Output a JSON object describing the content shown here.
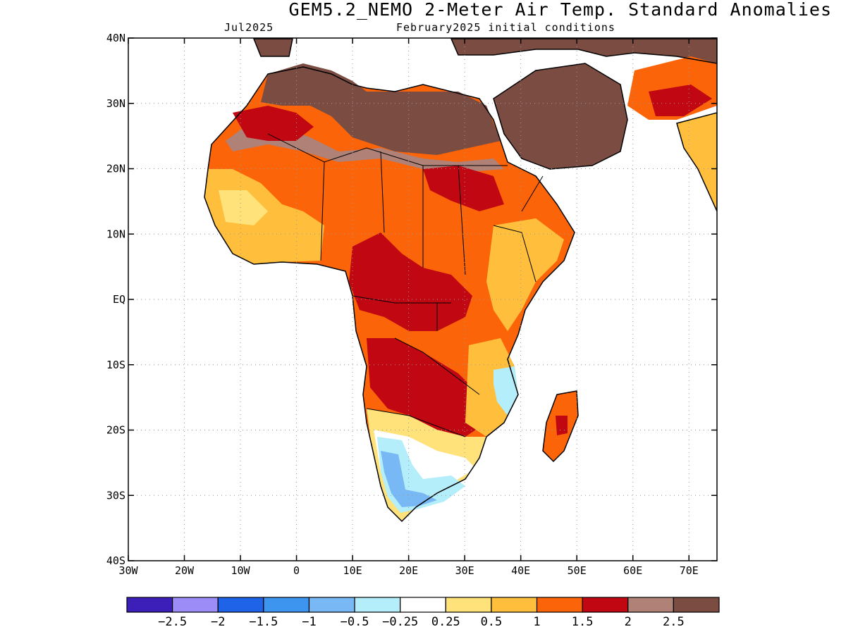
{
  "title": "GEM5.2_NEMO 2-Meter Air Temp. Standard Anomalies",
  "subtitle_left": "Jul2025",
  "subtitle_right": "February2025 initial conditions",
  "map": {
    "lon_range": [
      -30,
      75
    ],
    "lat_range": [
      -40,
      40
    ],
    "grid": true,
    "lon_ticks": [
      "30W",
      "20W",
      "10W",
      "0",
      "10E",
      "20E",
      "30E",
      "40E",
      "50E",
      "60E",
      "70E"
    ],
    "lat_ticks": [
      "40N",
      "30N",
      "20N",
      "10N",
      "EQ",
      "10S",
      "20S",
      "30S",
      "40S"
    ],
    "land_outline_color": "#000000"
  },
  "colorbar": {
    "colors": [
      "#3b1fb8",
      "#9b8cf7",
      "#1f64e8",
      "#3d95f0",
      "#78b8f5",
      "#b4eefa",
      "#ffffff",
      "#ffe27a",
      "#ffbf3c",
      "#fb6409",
      "#c00712",
      "#b08177",
      "#7a4c42"
    ],
    "labels": [
      "-2.5",
      "-2",
      "-1.5",
      "-1",
      "-0.5",
      "-0.25",
      "0.25",
      "0.5",
      "1",
      "1.5",
      "2",
      "2.5"
    ]
  }
}
